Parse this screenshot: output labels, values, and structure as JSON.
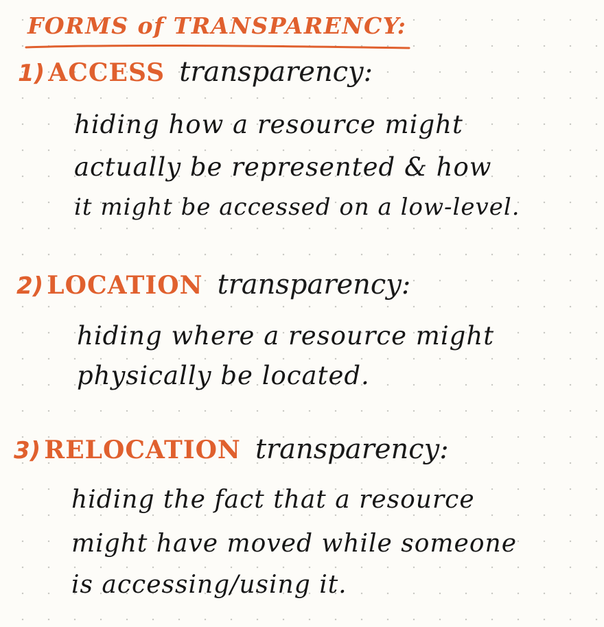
{
  "title": "FORMS of TRANSPARENCY:",
  "colors": {
    "accent": "#e0602e",
    "ink": "#161616",
    "paper": "#fdfcf8",
    "dots": "#c9c9c4"
  },
  "sections": [
    {
      "number": "1)",
      "keyword": "ACCESS",
      "term": "transparency:",
      "lines": [
        "hiding how a resource might",
        "actually be represented & how",
        "it might be accessed on a low-level."
      ]
    },
    {
      "number": "2)",
      "keyword": "LOCATION",
      "term": "transparency:",
      "lines": [
        "hiding where a resource might",
        "physically be located."
      ]
    },
    {
      "number": "3)",
      "keyword": "RELOCATION",
      "term": "transparency:",
      "lines": [
        "hiding the fact that a resource",
        "might have moved while someone",
        "is accessing/using it."
      ]
    }
  ]
}
